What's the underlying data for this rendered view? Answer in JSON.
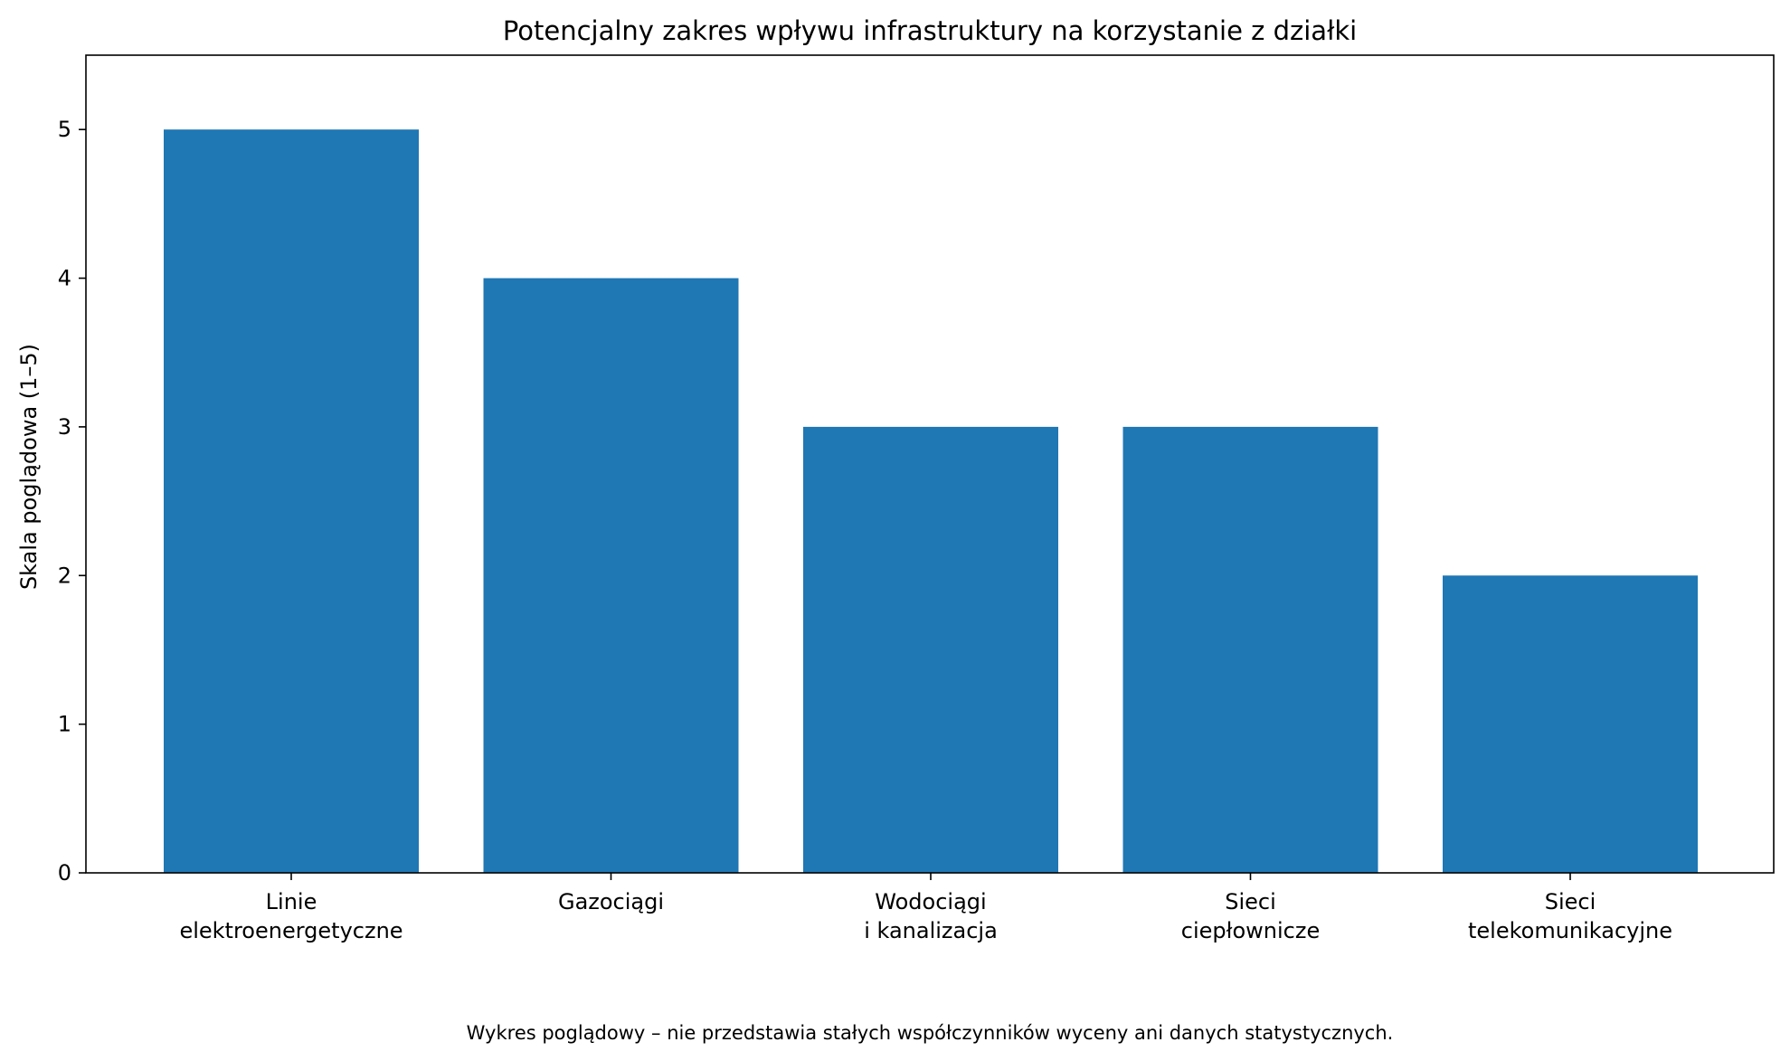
{
  "chart_data": {
    "type": "bar",
    "title": "Potencjalny zakres wpływu infrastruktury na korzystanie z działki",
    "xlabel": "",
    "ylabel": "Skala poglądowa (1–5)",
    "ylim": [
      0,
      5.5
    ],
    "yticks": [
      0,
      1,
      2,
      3,
      4,
      5
    ],
    "categories": [
      [
        "Linie",
        "elektroenergetyczne"
      ],
      [
        "Gazociągi"
      ],
      [
        "Wodociągi",
        "i kanalizacja"
      ],
      [
        "Sieci",
        "ciepłownicze"
      ],
      [
        "Sieci",
        "telekomunikacyjne"
      ]
    ],
    "values": [
      5,
      4,
      3,
      3,
      2
    ],
    "bar_color": "#1f77b4",
    "grid": false,
    "legend": "none",
    "footnote": "Wykres poglądowy – nie przedstawia stałych współczynników wyceny ani danych statystycznych."
  }
}
